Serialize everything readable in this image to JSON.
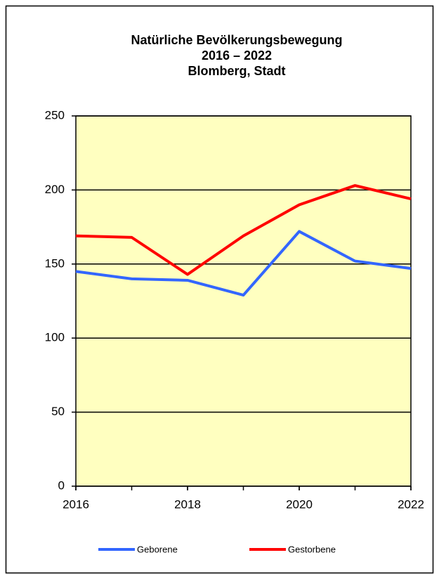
{
  "chart_data": {
    "type": "line",
    "title": [
      "Natürliche Bevölkerungsbewegung",
      "2016 – 2022",
      "Blomberg, Stadt"
    ],
    "x": [
      2016,
      2017,
      2018,
      2019,
      2020,
      2021,
      2022
    ],
    "series": [
      {
        "name": "Geborene",
        "color": "#3366ff",
        "values": [
          145,
          140,
          139,
          129,
          172,
          152,
          147
        ]
      },
      {
        "name": "Gestorbene",
        "color": "#ff0000",
        "values": [
          169,
          168,
          143,
          169,
          190,
          203,
          194
        ]
      }
    ],
    "xlim": [
      2016,
      2022
    ],
    "xticks": [
      2016,
      2018,
      2020,
      2022
    ],
    "ylim": [
      0,
      250
    ],
    "yticks": [
      0,
      50,
      100,
      150,
      200,
      250
    ],
    "grid": true,
    "legend": "bottom",
    "plot_background": "#ffffc0"
  }
}
